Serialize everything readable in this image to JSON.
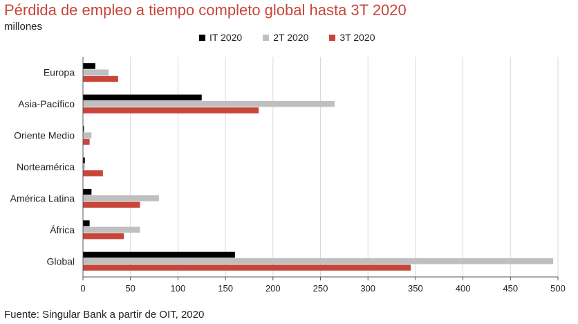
{
  "title": "Pérdida de empleo a tiempo completo global hasta 3T 2020",
  "subtitle": "millones",
  "source": "Fuente: Singular Bank a partir de OIT, 2020",
  "chart_data": {
    "type": "bar",
    "orientation": "horizontal",
    "categories": [
      "Europa",
      "Asia-Pacífico",
      "Oriente Medio",
      "Norteamérica",
      "América Latina",
      "África",
      "Global"
    ],
    "series": [
      {
        "name": "IT 2020",
        "color": "#000000",
        "values": [
          13,
          125,
          1,
          2,
          9,
          7,
          160
        ]
      },
      {
        "name": "2T 2020",
        "color": "#bfbfbf",
        "values": [
          27,
          265,
          9,
          2,
          80,
          60,
          495
        ]
      },
      {
        "name": "3T 2020",
        "color": "#c8453a",
        "values": [
          37,
          185,
          7,
          21,
          60,
          43,
          345
        ]
      }
    ],
    "xlim": [
      0,
      500
    ],
    "xticks": [
      0,
      50,
      100,
      150,
      200,
      250,
      300,
      350,
      400,
      450,
      500
    ],
    "grid": true,
    "legend_position": "top"
  }
}
